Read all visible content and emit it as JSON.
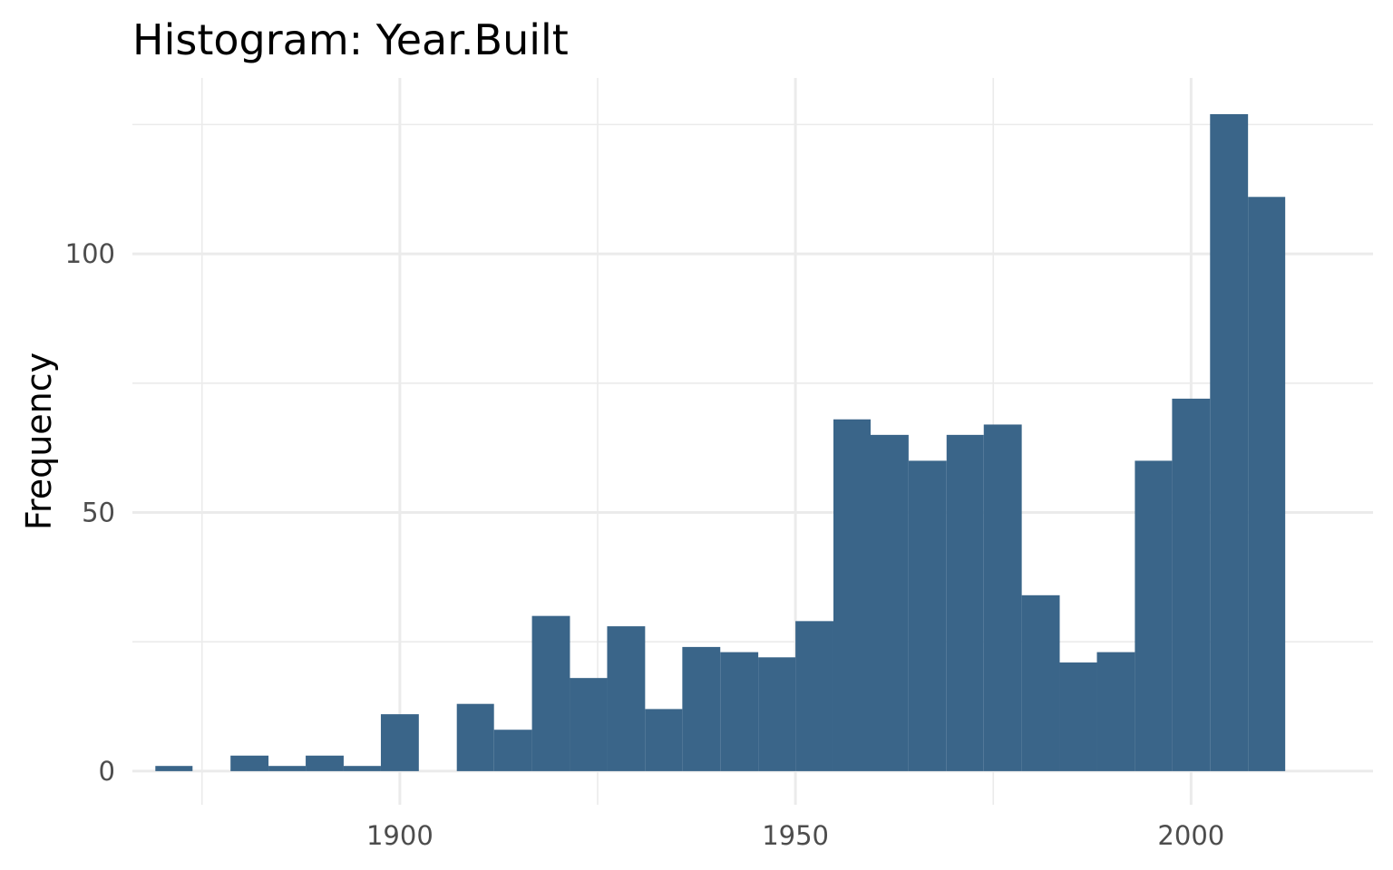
{
  "chart_data": {
    "type": "bar",
    "title": "Histogram:  Year.Built",
    "xlabel": "",
    "ylabel": "Frequency",
    "bar_color": "#3a6589",
    "x_ticks": [
      1900,
      1950,
      2000
    ],
    "y_ticks": [
      0,
      50,
      100
    ],
    "xlim": [
      1866.2,
      2023
    ],
    "ylim": [
      -6.5,
      134
    ],
    "grid": true,
    "bin_width": 4.76,
    "bins": [
      {
        "start": 1869.1,
        "end": 1873.8,
        "count": 1
      },
      {
        "start": 1873.8,
        "end": 1878.6,
        "count": 0
      },
      {
        "start": 1878.6,
        "end": 1883.4,
        "count": 3
      },
      {
        "start": 1883.4,
        "end": 1888.1,
        "count": 1
      },
      {
        "start": 1888.1,
        "end": 1892.9,
        "count": 3
      },
      {
        "start": 1892.9,
        "end": 1897.6,
        "count": 1
      },
      {
        "start": 1897.6,
        "end": 1902.4,
        "count": 11
      },
      {
        "start": 1902.4,
        "end": 1907.2,
        "count": 0
      },
      {
        "start": 1907.2,
        "end": 1911.9,
        "count": 13
      },
      {
        "start": 1911.9,
        "end": 1916.7,
        "count": 8
      },
      {
        "start": 1916.7,
        "end": 1921.5,
        "count": 30
      },
      {
        "start": 1921.5,
        "end": 1926.2,
        "count": 18
      },
      {
        "start": 1926.2,
        "end": 1931.0,
        "count": 28
      },
      {
        "start": 1931.0,
        "end": 1935.7,
        "count": 12
      },
      {
        "start": 1935.7,
        "end": 1940.5,
        "count": 24
      },
      {
        "start": 1940.5,
        "end": 1945.3,
        "count": 23
      },
      {
        "start": 1945.3,
        "end": 1950.0,
        "count": 22
      },
      {
        "start": 1950.0,
        "end": 1954.8,
        "count": 29
      },
      {
        "start": 1954.8,
        "end": 1959.5,
        "count": 68
      },
      {
        "start": 1959.5,
        "end": 1964.3,
        "count": 65
      },
      {
        "start": 1964.3,
        "end": 1969.1,
        "count": 60
      },
      {
        "start": 1969.1,
        "end": 1973.8,
        "count": 65
      },
      {
        "start": 1973.8,
        "end": 1978.6,
        "count": 67
      },
      {
        "start": 1978.6,
        "end": 1983.4,
        "count": 34
      },
      {
        "start": 1983.4,
        "end": 1988.1,
        "count": 21
      },
      {
        "start": 1988.1,
        "end": 1992.9,
        "count": 23
      },
      {
        "start": 1992.9,
        "end": 1997.6,
        "count": 60
      },
      {
        "start": 1997.6,
        "end": 2002.4,
        "count": 72
      },
      {
        "start": 2002.4,
        "end": 2007.2,
        "count": 127
      },
      {
        "start": 2007.2,
        "end": 2011.9,
        "count": 111
      }
    ]
  }
}
